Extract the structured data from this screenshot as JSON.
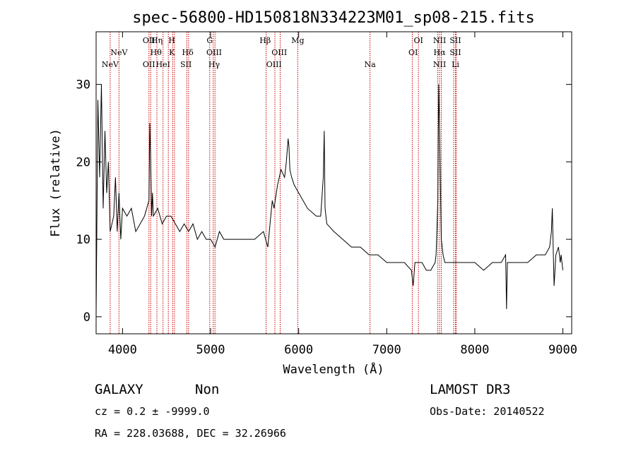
{
  "chart_data": {
    "type": "line",
    "title": "spec-56800-HD150818N334223M01_sp08-215.fits",
    "xlabel": "Wavelength (Å)",
    "ylabel": "Flux (relative)",
    "xlim": [
      3700,
      9100
    ],
    "ylim": [
      -2.2,
      36.8
    ],
    "x_ticks": [
      4000,
      5000,
      6000,
      7000,
      8000,
      9000
    ],
    "y_ticks": [
      0,
      10,
      20,
      30
    ],
    "grid": false,
    "series": [
      {
        "x": [
          3700,
          3720,
          3740,
          3760,
          3780,
          3800,
          3820,
          3840,
          3860,
          3880,
          3900,
          3920,
          3940,
          3960,
          3980,
          4000,
          4050,
          4100,
          4150,
          4200,
          4250,
          4300,
          4310,
          4320,
          4330,
          4340,
          4350,
          4400,
          4450,
          4500,
          4550,
          4600,
          4650,
          4700,
          4750,
          4800,
          4850,
          4900,
          4950,
          5000,
          5050,
          5100,
          5150,
          5200,
          5300,
          5400,
          5500,
          5600,
          5650,
          5700,
          5720,
          5760,
          5800,
          5840,
          5860,
          5880,
          5890,
          5900,
          5920,
          5950,
          6000,
          6050,
          6100,
          6200,
          6250,
          6280,
          6290,
          6300,
          6320,
          6400,
          6500,
          6600,
          6700,
          6800,
          6900,
          7000,
          7100,
          7200,
          7280,
          7300,
          7320,
          7400,
          7450,
          7500,
          7550,
          7560,
          7580,
          7590,
          7600,
          7620,
          7640,
          7660,
          7700,
          7800,
          7900,
          8000,
          8100,
          8200,
          8300,
          8350,
          8360,
          8370,
          8400,
          8500,
          8600,
          8700,
          8800,
          8850,
          8870,
          8880,
          8890,
          8900,
          8920,
          8950,
          8970,
          8980,
          9000
        ],
        "y": [
          0,
          28,
          18,
          30,
          14,
          24,
          16,
          20,
          11,
          12,
          13,
          18,
          11,
          16,
          10,
          14,
          13,
          14,
          11,
          12,
          13,
          15,
          25,
          20,
          13,
          16,
          13,
          14,
          12,
          13,
          13,
          12,
          11,
          12,
          11,
          12,
          10,
          11,
          10,
          10,
          9,
          11,
          10,
          10,
          10,
          10,
          10,
          11,
          9,
          15,
          14,
          17,
          19,
          18,
          20,
          23,
          22,
          19,
          18,
          17,
          16,
          15,
          14,
          13,
          13,
          18,
          24,
          14,
          12,
          11,
          10,
          9,
          9,
          8,
          8,
          7,
          7,
          7,
          6,
          4,
          7,
          7,
          6,
          6,
          7,
          8,
          15,
          30,
          24,
          10,
          8,
          7,
          7,
          7,
          7,
          7,
          6,
          7,
          7,
          8,
          1,
          7,
          7,
          7,
          7,
          8,
          8,
          9,
          11,
          14,
          9,
          4,
          8,
          9,
          7,
          8,
          6
        ],
        "color": "#000000"
      }
    ],
    "line_markers": [
      {
        "label": "NeV",
        "x": 3860,
        "row": 3
      },
      {
        "label": "NeV",
        "x": 3960,
        "row": 2
      },
      {
        "label": "OII",
        "x": 4300,
        "row": 1
      },
      {
        "label": "OII",
        "x": 4300,
        "row": 3
      },
      {
        "label": "Hη",
        "x": 4390,
        "row": 1
      },
      {
        "label": "Hθ",
        "x": 4380,
        "row": 2
      },
      {
        "label": "HeI",
        "x": 4460,
        "row": 3
      },
      {
        "label": "H",
        "x": 4560,
        "row": 1
      },
      {
        "label": "K",
        "x": 4560,
        "row": 2
      },
      {
        "label": "Hδ",
        "x": 4740,
        "row": 2
      },
      {
        "label": "SII",
        "x": 4720,
        "row": 3
      },
      {
        "label": "G",
        "x": 4990,
        "row": 1
      },
      {
        "label": "OIII",
        "x": 5040,
        "row": 2
      },
      {
        "label": "Hγ",
        "x": 5040,
        "row": 3
      },
      {
        "label": "Hβ",
        "x": 5620,
        "row": 1
      },
      {
        "label": "OIII",
        "x": 5780,
        "row": 2
      },
      {
        "label": "OIII",
        "x": 5720,
        "row": 3
      },
      {
        "label": "Mg",
        "x": 5990,
        "row": 1
      },
      {
        "label": "Na",
        "x": 6810,
        "row": 3
      },
      {
        "label": "OI",
        "x": 7360,
        "row": 1
      },
      {
        "label": "OI",
        "x": 7300,
        "row": 2
      },
      {
        "label": "NII",
        "x": 7600,
        "row": 1
      },
      {
        "label": "Hα",
        "x": 7600,
        "row": 2
      },
      {
        "label": "NII",
        "x": 7600,
        "row": 3
      },
      {
        "label": "SII",
        "x": 7780,
        "row": 1
      },
      {
        "label": "SII",
        "x": 7780,
        "row": 2
      },
      {
        "label": "Li",
        "x": 7780,
        "row": 3
      }
    ],
    "marker_lines_x": [
      3860,
      3960,
      4300,
      4320,
      4390,
      4460,
      4520,
      4570,
      4590,
      4730,
      4750,
      4990,
      5030,
      5050,
      5630,
      5730,
      5790,
      5990,
      6810,
      7290,
      7360,
      7580,
      7600,
      7620,
      7760,
      7780,
      7790
    ],
    "marker_color": "#cc0000"
  },
  "info": {
    "class": "GALAXY",
    "subclass": "Non",
    "cz": "cz = 0.2 ± -9999.0",
    "radec": "RA = 228.03688, DEC =  32.26966",
    "survey": "LAMOST DR3",
    "obsdate": "Obs-Date: 20140522"
  }
}
